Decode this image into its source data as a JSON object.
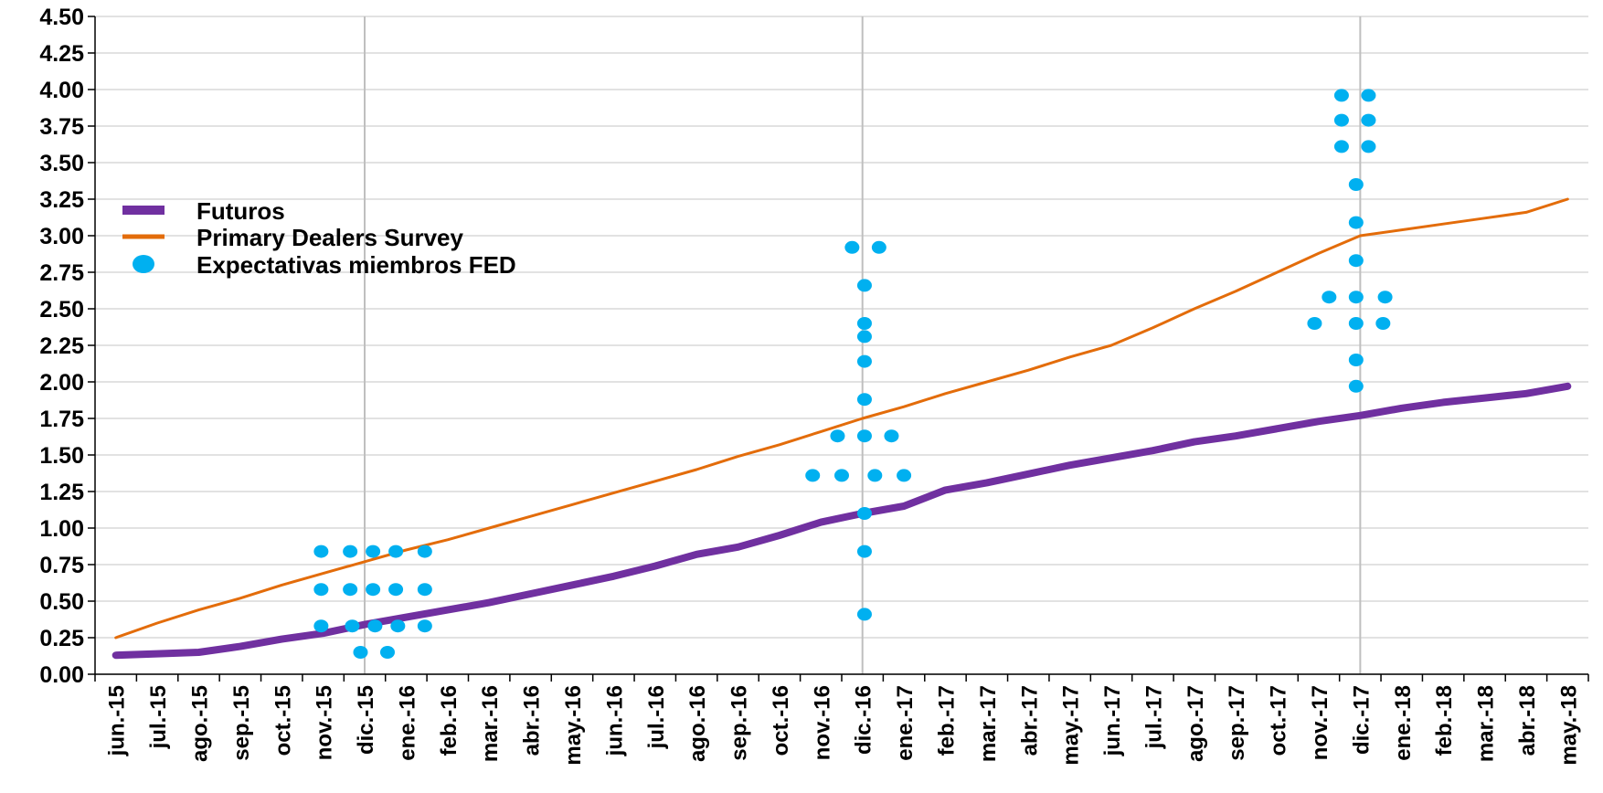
{
  "chart_data": {
    "type": "line",
    "title": "",
    "xlabel": "",
    "ylabel": "",
    "ylim": [
      0,
      4.5
    ],
    "y_ticks": [
      "0.00",
      "0.25",
      "0.50",
      "0.75",
      "1.00",
      "1.25",
      "1.50",
      "1.75",
      "2.00",
      "2.25",
      "2.50",
      "2.75",
      "3.00",
      "3.25",
      "3.50",
      "3.75",
      "4.00",
      "4.25",
      "4.50"
    ],
    "categories": [
      "jun.-15",
      "jul.-15",
      "ago.-15",
      "sep.-15",
      "oct.-15",
      "nov.-15",
      "dic.-15",
      "ene.-16",
      "feb.-16",
      "mar.-16",
      "abr.-16",
      "may.-16",
      "jun.-16",
      "jul.-16",
      "ago.-16",
      "sep.-16",
      "oct.-16",
      "nov.-16",
      "dic.-16",
      "ene.-17",
      "feb.-17",
      "mar.-17",
      "abr.-17",
      "may.-17",
      "jun.-17",
      "jul.-17",
      "ago.-17",
      "sep.-17",
      "oct.-17",
      "nov.-17",
      "dic.-17",
      "ene.-18",
      "feb.-18",
      "mar.-18",
      "abr.-18",
      "may.-18"
    ],
    "grid": "horizontal",
    "vertical_reference_lines_at": [
      "dic.-15",
      "dic.-16",
      "dic.-17"
    ],
    "legend_position": "upper-left",
    "series": [
      {
        "name": "Futuros",
        "kind": "line",
        "color": "#7030A0",
        "values": [
          0.13,
          0.14,
          0.15,
          0.19,
          0.24,
          0.28,
          0.34,
          0.39,
          0.44,
          0.49,
          0.55,
          0.61,
          0.67,
          0.74,
          0.82,
          0.87,
          0.95,
          1.04,
          1.1,
          1.15,
          1.26,
          1.31,
          1.37,
          1.43,
          1.48,
          1.53,
          1.59,
          1.63,
          1.68,
          1.73,
          1.77,
          1.82,
          1.86,
          1.89,
          1.92,
          1.97
        ]
      },
      {
        "name": "Primary Dealers Survey",
        "kind": "line",
        "color": "#E36C0A",
        "values": [
          0.25,
          0.35,
          0.44,
          0.52,
          0.61,
          0.69,
          0.77,
          0.85,
          0.92,
          1.0,
          1.08,
          1.16,
          1.24,
          1.32,
          1.4,
          1.49,
          1.57,
          1.66,
          1.75,
          1.83,
          1.92,
          2.0,
          2.08,
          2.17,
          2.25,
          2.37,
          2.5,
          2.62,
          2.75,
          2.88,
          3.0,
          3.04,
          3.08,
          3.12,
          3.16,
          3.25
        ]
      },
      {
        "name": "Expectativas miembros FED",
        "kind": "scatter",
        "color": "#00B0F0",
        "points": [
          {
            "x": 4.95,
            "y": 0.84
          },
          {
            "x": 5.65,
            "y": 0.84
          },
          {
            "x": 6.2,
            "y": 0.84
          },
          {
            "x": 6.75,
            "y": 0.84
          },
          {
            "x": 7.45,
            "y": 0.84
          },
          {
            "x": 4.95,
            "y": 0.58
          },
          {
            "x": 5.65,
            "y": 0.58
          },
          {
            "x": 6.2,
            "y": 0.58
          },
          {
            "x": 6.75,
            "y": 0.58
          },
          {
            "x": 7.45,
            "y": 0.58
          },
          {
            "x": 4.95,
            "y": 0.33
          },
          {
            "x": 5.7,
            "y": 0.33
          },
          {
            "x": 6.25,
            "y": 0.33
          },
          {
            "x": 6.8,
            "y": 0.33
          },
          {
            "x": 7.45,
            "y": 0.33
          },
          {
            "x": 5.9,
            "y": 0.15
          },
          {
            "x": 6.55,
            "y": 0.15
          },
          {
            "x": 17.75,
            "y": 2.92
          },
          {
            "x": 18.4,
            "y": 2.92
          },
          {
            "x": 18.05,
            "y": 2.66
          },
          {
            "x": 18.05,
            "y": 2.4
          },
          {
            "x": 18.05,
            "y": 2.31
          },
          {
            "x": 18.05,
            "y": 2.14
          },
          {
            "x": 18.05,
            "y": 1.88
          },
          {
            "x": 17.4,
            "y": 1.63
          },
          {
            "x": 18.05,
            "y": 1.63
          },
          {
            "x": 18.7,
            "y": 1.63
          },
          {
            "x": 16.8,
            "y": 1.36
          },
          {
            "x": 17.5,
            "y": 1.36
          },
          {
            "x": 18.3,
            "y": 1.36
          },
          {
            "x": 19.0,
            "y": 1.36
          },
          {
            "x": 18.05,
            "y": 1.1
          },
          {
            "x": 18.05,
            "y": 0.84
          },
          {
            "x": 18.05,
            "y": 0.41
          },
          {
            "x": 29.55,
            "y": 3.96
          },
          {
            "x": 30.2,
            "y": 3.96
          },
          {
            "x": 29.55,
            "y": 3.79
          },
          {
            "x": 30.2,
            "y": 3.79
          },
          {
            "x": 29.55,
            "y": 3.61
          },
          {
            "x": 30.2,
            "y": 3.61
          },
          {
            "x": 29.9,
            "y": 3.35
          },
          {
            "x": 29.9,
            "y": 3.09
          },
          {
            "x": 29.9,
            "y": 2.83
          },
          {
            "x": 29.25,
            "y": 2.58
          },
          {
            "x": 29.9,
            "y": 2.58
          },
          {
            "x": 30.6,
            "y": 2.58
          },
          {
            "x": 28.9,
            "y": 2.4
          },
          {
            "x": 29.9,
            "y": 2.4
          },
          {
            "x": 30.55,
            "y": 2.4
          },
          {
            "x": 29.9,
            "y": 2.15
          },
          {
            "x": 29.9,
            "y": 1.97
          }
        ]
      }
    ]
  }
}
